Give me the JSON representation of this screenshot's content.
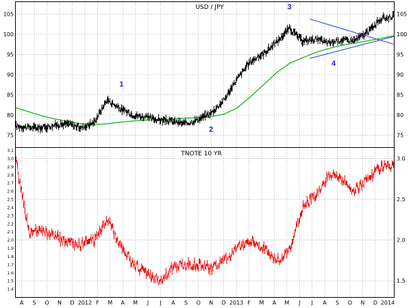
{
  "colors": {
    "price": "#000000",
    "moving_average": "#22bb22",
    "trendline": "#2233cc",
    "wave_label": "#2222cc",
    "tnote": "#ee0000",
    "grid": "#7f7f7f"
  },
  "chart_data": [
    {
      "type": "line",
      "title": "USD / JPY",
      "grid": true,
      "ylim": [
        72,
        108
      ],
      "y_ticks_left": [
        75,
        80,
        85,
        90,
        95,
        100,
        105
      ],
      "y_ticks_right": [
        75,
        80,
        85,
        90,
        95,
        100,
        105
      ],
      "x": [
        "A",
        "S",
        "O",
        "N",
        "D",
        "2012",
        "F",
        "M",
        "A",
        "M",
        "J",
        "J",
        "A",
        "S",
        "O",
        "N",
        "D",
        "2013",
        "F",
        "M",
        "A",
        "M",
        "J",
        "J",
        "A",
        "S",
        "O",
        "N",
        "D",
        "2014"
      ],
      "series": [
        {
          "values": [
            77.2,
            76.9,
            76.8,
            77.5,
            77.8,
            76.8,
            78.2,
            83.8,
            81.5,
            80.0,
            79.4,
            78.8,
            78.4,
            77.8,
            78.9,
            80.5,
            83.8,
            89.0,
            93.2,
            95.2,
            98.0,
            101.5,
            98.3,
            98.8,
            97.8,
            98.6,
            98.5,
            100.5,
            103.8,
            104.5
          ]
        },
        {
          "values": [
            81.8,
            80.8,
            79.8,
            79.0,
            78.4,
            77.8,
            77.6,
            77.8,
            78.2,
            78.5,
            78.7,
            78.9,
            79.0,
            79.2,
            79.3,
            79.6,
            80.2,
            81.8,
            84.5,
            87.5,
            90.5,
            92.8,
            94.2,
            95.5,
            96.5,
            97.3,
            97.8,
            98.4,
            99.0,
            99.7
          ]
        }
      ],
      "trendlines": [
        {
          "x": [
            23.3,
            30.0
          ],
          "y": [
            103.8,
            97.5
          ]
        },
        {
          "x": [
            23.3,
            30.0
          ],
          "y": [
            94.0,
            99.5
          ]
        }
      ],
      "annotations": [
        {
          "text": "1",
          "x": 8.4,
          "y": 87.0
        },
        {
          "text": "2",
          "x": 15.5,
          "y": 75.8
        },
        {
          "text": "3",
          "x": 21.7,
          "y": 106.2
        },
        {
          "text": "4",
          "x": 25.2,
          "y": 92.2
        }
      ]
    },
    {
      "type": "line",
      "title": "TNOTE 10 YR",
      "grid": true,
      "ylim": [
        1.3,
        3.13
      ],
      "y_ticks_left": [
        "3.1",
        "3.0",
        "2.9",
        "2.8",
        "2.7",
        "2.6",
        "2.5",
        "2.4",
        "2.3",
        "2.2",
        "2.1",
        "2.0",
        "1.9",
        "1.8",
        "1.7",
        "1.6",
        "1.5",
        "1.4"
      ],
      "y_ticks_right": [
        "3.0",
        "2.5",
        "2.0",
        "1.5"
      ],
      "x": [
        "A",
        "S",
        "O",
        "N",
        "D",
        "2012",
        "F",
        "M",
        "A",
        "M",
        "J",
        "J",
        "A",
        "S",
        "O",
        "N",
        "D",
        "2013",
        "F",
        "M",
        "A",
        "M",
        "J",
        "J",
        "A",
        "S",
        "O",
        "N",
        "D",
        "2014"
      ],
      "series": [
        {
          "values": [
            2.95,
            2.1,
            2.1,
            2.05,
            1.95,
            1.95,
            2.0,
            2.25,
            1.95,
            1.7,
            1.6,
            1.5,
            1.65,
            1.7,
            1.7,
            1.65,
            1.75,
            1.9,
            2.0,
            1.9,
            1.75,
            1.85,
            2.4,
            2.55,
            2.8,
            2.75,
            2.6,
            2.75,
            2.9,
            2.9
          ]
        }
      ]
    }
  ]
}
